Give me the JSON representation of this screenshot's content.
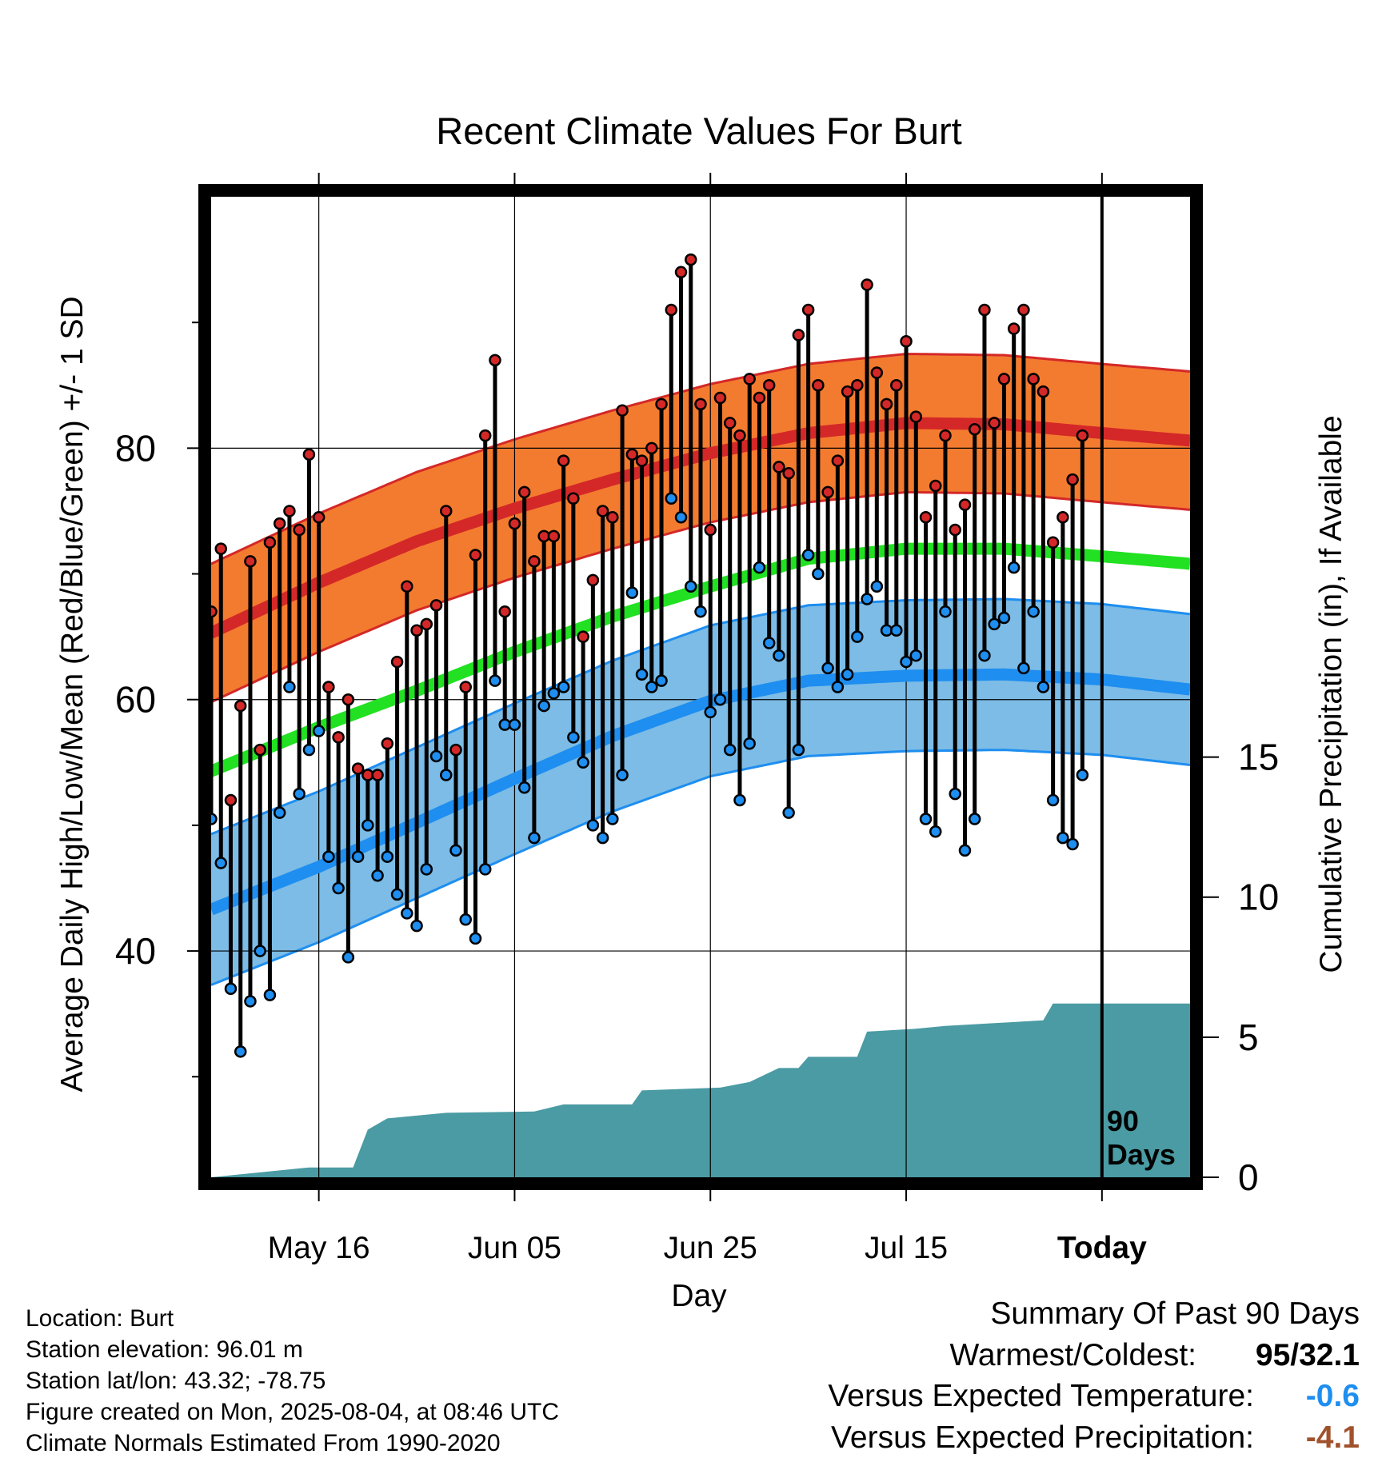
{
  "chart_data": {
    "type": "line",
    "title": "Recent Climate Values For Burt",
    "xlabel": "Day",
    "ylabel": "Average Daily High/Low/Mean (Red/Blue/Green) +/- 1 SD",
    "y2label": "Cumulative Precipitation (in), If Available",
    "x_ticks": [
      {
        "label": "May 16",
        "day": 12
      },
      {
        "label": "Jun 05",
        "day": 32
      },
      {
        "label": "Jun 25",
        "day": 52
      },
      {
        "label": "Jul 15",
        "day": 72
      },
      {
        "label": "Today",
        "day": 92
      }
    ],
    "x_range": [
      1,
      101
    ],
    "ylim": [
      22,
      100
    ],
    "y_ticks": [
      40,
      60,
      80
    ],
    "y2lim": [
      0,
      35
    ],
    "y2_ticks": [
      0,
      5,
      10,
      15
    ],
    "grid": true,
    "today_marker": {
      "day": 92,
      "label_line1": "90",
      "label_line2": "Days"
    },
    "series": [
      {
        "name": "High",
        "color": "#d42828",
        "band_color": "#f37b2f",
        "sd": 5.5,
        "days": [
          1,
          12,
          22,
          32,
          42,
          52,
          62,
          72,
          82,
          92,
          101
        ],
        "normal": [
          65.3,
          69.3,
          72.6,
          75.2,
          77.5,
          79.6,
          81.2,
          82.0,
          81.9,
          81.2,
          80.6
        ]
      },
      {
        "name": "Mean",
        "color": "#22e022",
        "sd": 0,
        "days": [
          1,
          12,
          22,
          32,
          42,
          52,
          62,
          72,
          82,
          92,
          101
        ],
        "normal": [
          54.3,
          57.8,
          60.7,
          63.8,
          66.6,
          69.0,
          71.2,
          72.0,
          72.0,
          71.4,
          70.8
        ]
      },
      {
        "name": "Low",
        "color": "#1e8ef0",
        "band_color": "#7cbce6",
        "sd": 6.0,
        "days": [
          1,
          12,
          22,
          32,
          42,
          52,
          62,
          72,
          82,
          92,
          101
        ],
        "normal": [
          43.3,
          46.7,
          50.2,
          53.7,
          57.1,
          59.9,
          61.5,
          61.9,
          62.0,
          61.6,
          60.8
        ]
      }
    ],
    "daily": {
      "start_day": 1,
      "high": [
        67,
        72,
        52,
        59.5,
        71,
        56,
        72.5,
        74,
        75,
        73.5,
        79.5,
        74.5,
        61,
        57,
        60,
        54.5,
        54,
        54,
        56.5,
        63,
        69,
        65.5,
        66,
        67.5,
        75,
        56,
        61,
        71.5,
        81,
        87,
        67,
        74,
        76.5,
        71,
        73,
        73,
        79,
        76,
        65,
        69.5,
        75,
        74.5,
        83,
        79.5,
        79,
        80,
        83.5,
        91,
        94,
        95,
        83.5,
        73.5,
        84,
        82,
        81,
        85.5,
        84,
        85,
        78.5,
        78,
        89,
        91,
        85,
        76.5,
        79,
        84.5,
        85,
        93,
        86,
        83.5,
        85,
        88.5,
        82.5,
        74.5,
        77,
        81,
        73.5,
        75.5,
        81.5,
        91,
        82,
        85.5,
        89.5,
        91,
        85.5,
        84.5,
        72.5,
        74.5,
        77.5,
        81
      ],
      "low": [
        50.5,
        47,
        37,
        32,
        36,
        40,
        36.5,
        51,
        61,
        52.5,
        56,
        57.5,
        47.5,
        45,
        39.5,
        47.5,
        50,
        46,
        47.5,
        44.5,
        43,
        42,
        46.5,
        55.5,
        54,
        48,
        42.5,
        41,
        46.5,
        61.5,
        58,
        58,
        53,
        49,
        59.5,
        60.5,
        61,
        57,
        55,
        50,
        49,
        50.5,
        54,
        68.5,
        62,
        61,
        61.5,
        76,
        74.5,
        69,
        67,
        59,
        60,
        56,
        52,
        56.5,
        70.5,
        64.5,
        63.5,
        51,
        56,
        71.5,
        70,
        62.5,
        61,
        62,
        65,
        68,
        69,
        65.5,
        65.5,
        63,
        63.5,
        50.5,
        49.5,
        67,
        52.5,
        48,
        50.5,
        63.5,
        66,
        66.5,
        70.5,
        62.5,
        67,
        61,
        52,
        49,
        48.5,
        54
      ]
    },
    "precip_cumulative": {
      "steps": [
        [
          1,
          0
        ],
        [
          11,
          0.35
        ],
        [
          15.5,
          0.35
        ],
        [
          17,
          1.7
        ],
        [
          19,
          2.1
        ],
        [
          25,
          2.3
        ],
        [
          34,
          2.35
        ],
        [
          37,
          2.6
        ],
        [
          44,
          2.6
        ],
        [
          45,
          3.1
        ],
        [
          53,
          3.2
        ],
        [
          56,
          3.4
        ],
        [
          59,
          3.9
        ],
        [
          61,
          3.9
        ],
        [
          62,
          4.3
        ],
        [
          67,
          4.3
        ],
        [
          68,
          5.2
        ],
        [
          73,
          5.3
        ],
        [
          76,
          5.4
        ],
        [
          81,
          5.5
        ],
        [
          86,
          5.6
        ],
        [
          87,
          6.2
        ],
        [
          101,
          6.2
        ]
      ]
    }
  },
  "info": {
    "location": "Location: Burt",
    "elevation": "Station elevation: 96.01 m",
    "latlon": "Station lat/lon: 43.32; -78.75",
    "created": "Figure created on Mon, 2025-08-04, at 08:46 UTC",
    "normals": "Climate Normals Estimated From 1990-2020"
  },
  "summary": {
    "title": "Summary Of Past 90 Days",
    "warmest_label": "Warmest/Coldest:",
    "warmest_value": "95/32.1",
    "temp_label": "Versus Expected Temperature:",
    "temp_value": "-0.6",
    "temp_color": "#1e8ef0",
    "precip_label": "Versus Expected Precipitation:",
    "precip_value": "-4.1",
    "precip_color": "#a0522d"
  },
  "colors": {
    "precip_fill": "#4a9ba3",
    "frame": "#000000"
  }
}
